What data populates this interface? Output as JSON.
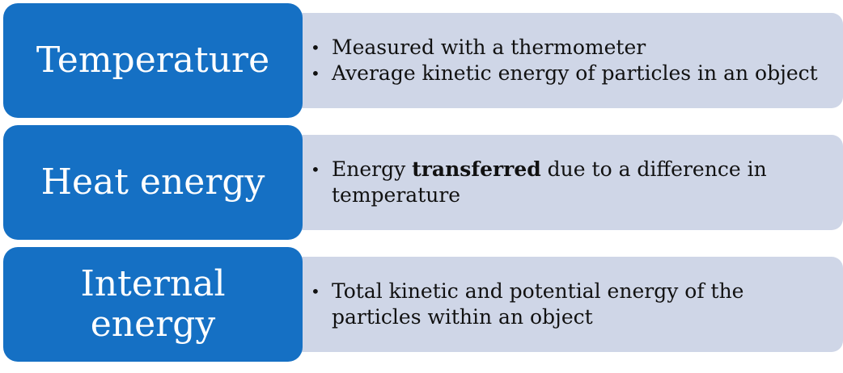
{
  "rows": [
    {
      "term": "Temperature",
      "bullets": [
        {
          "text": "Measured with a thermometer"
        },
        {
          "text": "Average kinetic energy of particles in an object"
        }
      ]
    },
    {
      "term": "Heat energy",
      "bullets": [
        {
          "before": "Energy ",
          "bold": "transferred",
          "after": " due to a difference in temperature"
        }
      ]
    },
    {
      "term": "Internal energy",
      "bullets": [
        {
          "text": "Total kinetic and potential energy of the particles within an object"
        }
      ]
    }
  ],
  "colors": {
    "term_bg": "#1570c4",
    "desc_bg": "#cfd6e7",
    "term_text": "#ffffff",
    "desc_text": "#111111"
  }
}
